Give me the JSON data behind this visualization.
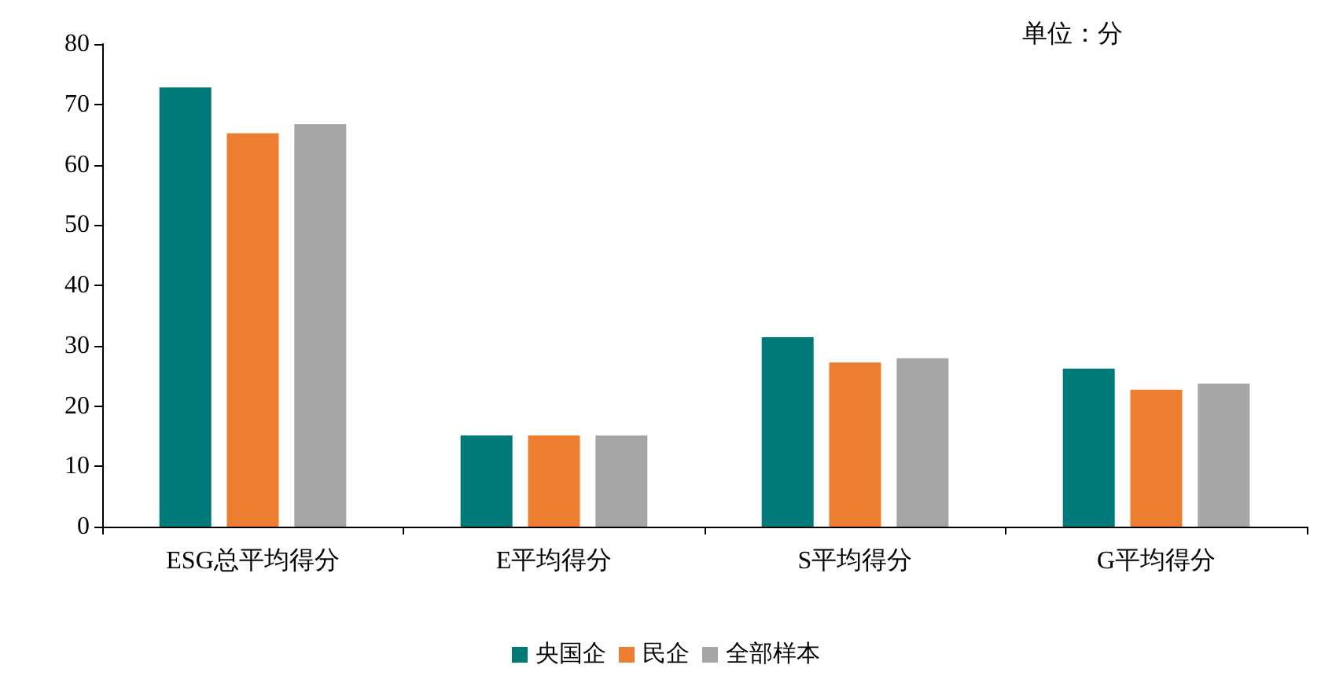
{
  "chart_data": {
    "type": "bar",
    "categories": [
      "ESG总平均得分",
      "E平均得分",
      "S平均得分",
      "G平均得分"
    ],
    "series": [
      {
        "name": "央国企",
        "color": "#007a78",
        "values": [
          72.8,
          15.1,
          31.4,
          26.2
        ]
      },
      {
        "name": "民企",
        "color": "#ed7d31",
        "values": [
          65.2,
          15.1,
          27.2,
          22.7
        ]
      },
      {
        "name": "全部样本",
        "color": "#a5a5a5",
        "values": [
          66.7,
          15.1,
          27.9,
          23.7
        ]
      }
    ],
    "ylim": [
      0,
      80
    ],
    "yticks": [
      0,
      10,
      20,
      30,
      40,
      50,
      60,
      70,
      80
    ],
    "grid": false,
    "legend": "bottom",
    "annotations": [
      "单位：分"
    ]
  }
}
